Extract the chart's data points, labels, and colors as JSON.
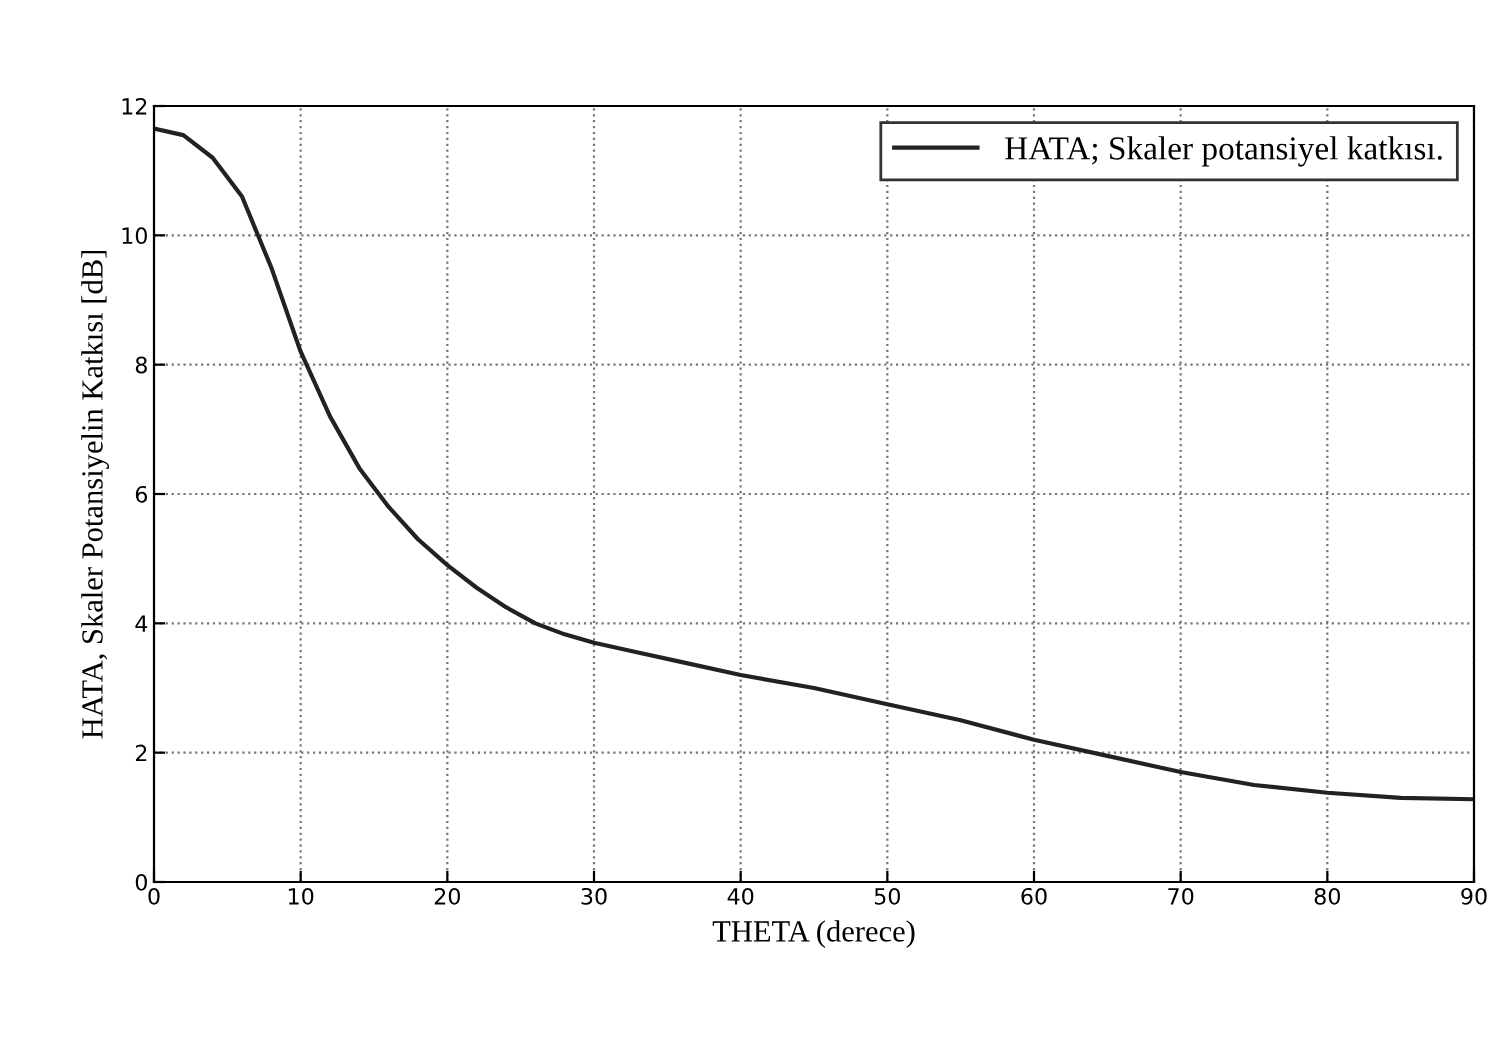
{
  "chart_data": {
    "type": "line",
    "xlabel": "THETA (derece)",
    "ylabel": "HATA, Skaler Potansiyelin Katkısı [dB]",
    "xlim": [
      0,
      90
    ],
    "xticks": [
      0,
      10,
      20,
      30,
      40,
      50,
      60,
      70,
      80,
      90
    ],
    "ylim": [
      0,
      12
    ],
    "yticks": [
      0,
      2,
      4,
      6,
      8,
      10,
      12
    ],
    "grid": true,
    "legend": "top right",
    "line_style": "solid",
    "marker": "none",
    "x": [
      0,
      2,
      4,
      6,
      8,
      10,
      12,
      14,
      16,
      18,
      20,
      22,
      24,
      26,
      28,
      30,
      33,
      36,
      40,
      45,
      50,
      55,
      60,
      65,
      70,
      75,
      80,
      85,
      90
    ],
    "series": [
      {
        "name": "HATA; Skaler potansiyel katkısı.",
        "color": "#222222",
        "values": [
          11.65,
          11.55,
          11.2,
          10.6,
          9.5,
          8.2,
          7.2,
          6.4,
          5.8,
          5.3,
          4.9,
          4.55,
          4.25,
          4.0,
          3.83,
          3.7,
          3.55,
          3.4,
          3.2,
          3.0,
          2.75,
          2.5,
          2.2,
          1.95,
          1.7,
          1.5,
          1.38,
          1.3,
          1.28
        ]
      }
    ]
  }
}
